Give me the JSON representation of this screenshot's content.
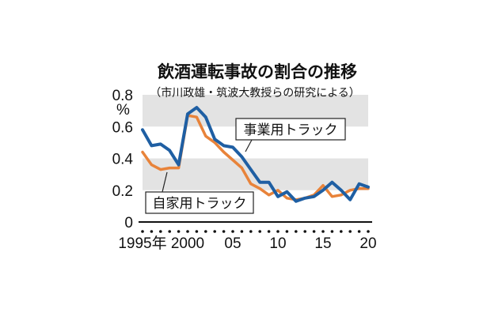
{
  "chart_data": {
    "type": "line",
    "title": "飲酒運転事故の割合の推移",
    "subtitle": "（市川政雄・筑波大教授らの研究による）",
    "ylabel": "%",
    "ylim": [
      0,
      0.8
    ],
    "yticks": [
      "0",
      "0.2",
      "0.4",
      "0.6",
      "0.8"
    ],
    "x": [
      1995,
      1996,
      1997,
      1998,
      1999,
      2000,
      2001,
      2002,
      2003,
      2004,
      2005,
      2006,
      2007,
      2008,
      2009,
      2010,
      2011,
      2012,
      2013,
      2014,
      2015,
      2016,
      2017,
      2018,
      2019,
      2020
    ],
    "xtick_labels": [
      {
        "x": 1995,
        "label": "1995年"
      },
      {
        "x": 2000,
        "label": "2000"
      },
      {
        "x": 2005,
        "label": "05"
      },
      {
        "x": 2010,
        "label": "10"
      },
      {
        "x": 2015,
        "label": "15"
      },
      {
        "x": 2020,
        "label": "20"
      }
    ],
    "grid_bands": "alternating gray",
    "series": [
      {
        "name": "事業用トラック",
        "color": "#1f5fa3",
        "values": [
          0.58,
          0.48,
          0.49,
          0.45,
          0.36,
          0.68,
          0.72,
          0.66,
          0.52,
          0.48,
          0.47,
          0.41,
          0.33,
          0.25,
          0.25,
          0.16,
          0.19,
          0.13,
          0.15,
          0.16,
          0.2,
          0.25,
          0.2,
          0.14,
          0.24,
          0.22
        ]
      },
      {
        "name": "自家用トラック",
        "color": "#e8833a",
        "values": [
          0.44,
          0.36,
          0.33,
          0.34,
          0.34,
          0.67,
          0.66,
          0.54,
          0.5,
          0.44,
          0.39,
          0.34,
          0.24,
          0.21,
          0.17,
          0.2,
          0.15,
          0.14,
          0.15,
          0.17,
          0.23,
          0.16,
          0.17,
          0.2,
          0.21,
          0.21
        ]
      }
    ]
  }
}
